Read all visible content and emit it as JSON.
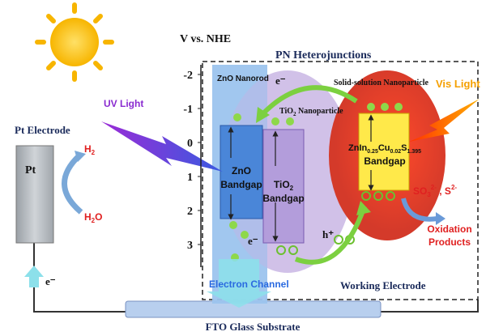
{
  "axis": {
    "title": "V vs. NHE",
    "ticks": [
      -2,
      -1,
      0,
      1,
      2,
      3
    ]
  },
  "header": {
    "title": "PN Heterojunctions"
  },
  "zno": {
    "nanorod": "ZnO Nanorod",
    "name": "ZnO",
    "bandgap": "Bandgap"
  },
  "tio2": {
    "nanoparticle": {
      "base": "TiO",
      "sub": "2",
      "rest": " Nanoparticle"
    },
    "bandgap": {
      "base": "TiO",
      "sub": "2",
      "line2": "Bandgap"
    }
  },
  "solid": {
    "title": "Solid-solution Nanoparticle",
    "formula": [
      "ZnIn",
      "0.25",
      "Cu",
      "0.02",
      "S",
      "1.395"
    ],
    "bandgap": "Bandgap"
  },
  "light": {
    "uv": "UV Light",
    "vis": "Vis Light"
  },
  "pt": {
    "title": "Pt Electrode",
    "label": "Pt",
    "h2": {
      "base": "H",
      "sub": "2"
    },
    "h2o": {
      "base": "H",
      "sub": "2",
      "rest": "O"
    },
    "electron": "e⁻"
  },
  "carriers": {
    "electron_top": "e⁻",
    "electron_bottom": "e⁻",
    "hole": "h⁺"
  },
  "products": {
    "reactants": {
      "a": "SO",
      "a_sub": "3",
      "a_sup": "2-",
      "sep": " , S",
      "b_sup": "2-"
    },
    "oxidation": "Oxidation",
    "products": "Products"
  },
  "footer": {
    "channel": "Electron Channel",
    "working": "Working Electrode",
    "fto": "FTO Glass Substrate"
  }
}
